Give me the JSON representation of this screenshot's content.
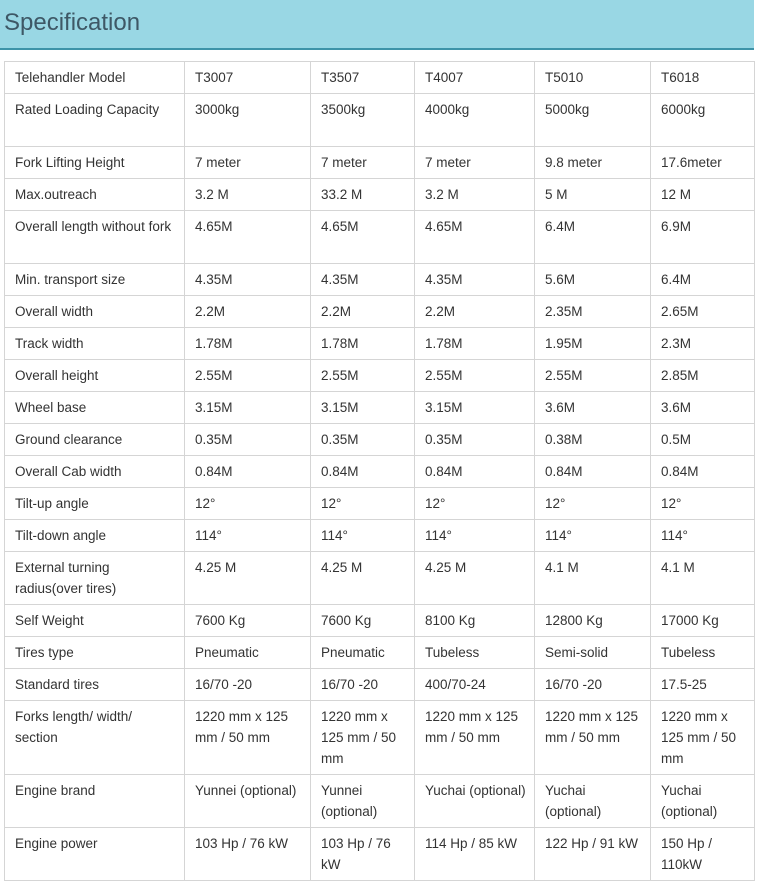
{
  "title": "Specification",
  "columns": [
    "Telehandler Model",
    "T3007",
    "T3507",
    "T4007",
    "T5010",
    "T6018"
  ],
  "rows": [
    {
      "label": "Rated Loading Capacity",
      "lines": 2,
      "values": [
        "3000kg",
        "3500kg",
        "4000kg",
        "5000kg",
        "6000kg"
      ]
    },
    {
      "label": "Fork Lifting Height",
      "lines": 1,
      "values": [
        "7 meter",
        "7 meter",
        "7 meter",
        "9.8 meter",
        "17.6meter"
      ]
    },
    {
      "label": "Max.outreach",
      "lines": 1,
      "values": [
        "3.2 M",
        "33.2 M",
        "3.2 M",
        "5 M",
        "12 M"
      ]
    },
    {
      "label": "Overall length without fork",
      "lines": 2,
      "values": [
        "4.65M",
        "4.65M",
        "4.65M",
        "6.4M",
        "6.9M"
      ]
    },
    {
      "label": "Min. transport size",
      "lines": 1,
      "values": [
        "4.35M",
        "4.35M",
        "4.35M",
        "5.6M",
        "6.4M"
      ]
    },
    {
      "label": "Overall width",
      "lines": 1,
      "values": [
        "2.2M",
        "2.2M",
        "2.2M",
        "2.35M",
        "2.65M"
      ]
    },
    {
      "label": "Track width",
      "lines": 1,
      "values": [
        "1.78M",
        "1.78M",
        "1.78M",
        "1.95M",
        "2.3M"
      ]
    },
    {
      "label": "Overall height",
      "lines": 1,
      "values": [
        "2.55M",
        "2.55M",
        "2.55M",
        "2.55M",
        "2.85M"
      ]
    },
    {
      "label": "Wheel base",
      "lines": 1,
      "values": [
        "3.15M",
        "3.15M",
        "3.15M",
        "3.6M",
        "3.6M"
      ]
    },
    {
      "label": "Ground clearance",
      "lines": 1,
      "values": [
        "0.35M",
        "0.35M",
        "0.35M",
        "0.38M",
        "0.5M"
      ]
    },
    {
      "label": "Overall Cab width",
      "lines": 1,
      "values": [
        "0.84M",
        "0.84M",
        "0.84M",
        "0.84M",
        "0.84M"
      ]
    },
    {
      "label": "Tilt-up angle",
      "lines": 1,
      "values": [
        "12°",
        "12°",
        "12°",
        "12°",
        "12°"
      ]
    },
    {
      "label": "Tilt-down angle",
      "lines": 1,
      "values": [
        "114°",
        "114°",
        "114°",
        "114°",
        "114°"
      ]
    },
    {
      "label": "External turning radius(over tires)",
      "lines": 2,
      "values": [
        "4.25 M",
        "4.25 M",
        "4.25 M",
        "4.1 M",
        "4.1 M"
      ]
    },
    {
      "label": "Self Weight",
      "lines": 1,
      "values": [
        "7600 Kg",
        "7600 Kg",
        "8100 Kg",
        "12800 Kg",
        "17000 Kg"
      ]
    },
    {
      "label": "Tires type",
      "lines": 1,
      "values": [
        "Pneumatic",
        "Pneumatic",
        "Tubeless",
        "Semi-solid",
        "Tubeless"
      ]
    },
    {
      "label": "Standard tires",
      "lines": 1,
      "values": [
        "16/70 -20",
        "16/70 -20",
        "400/70-24",
        "16/70 -20",
        "17.5-25"
      ]
    },
    {
      "label": "Forks length/ width/ section",
      "lines": 3,
      "values": [
        "1220 mm x 125 mm / 50 mm",
        "1220 mm x 125 mm / 50 mm",
        "1220 mm x 125 mm / 50 mm",
        "1220 mm x 125 mm / 50 mm",
        "1220 mm x 125 mm / 50 mm"
      ]
    },
    {
      "label": "Engine brand",
      "lines": 2,
      "values": [
        "Yunnei (optional)",
        "Yunnei (optional)",
        "Yuchai (optional)",
        "Yuchai (optional)",
        "Yuchai (optional)"
      ]
    },
    {
      "label": "Engine power",
      "lines": 2,
      "values": [
        "103 Hp / 76 kW",
        "103 Hp / 76 kW",
        "114 Hp / 85 kW",
        "122 Hp / 91 kW",
        "150 Hp / 110kW"
      ]
    }
  ]
}
